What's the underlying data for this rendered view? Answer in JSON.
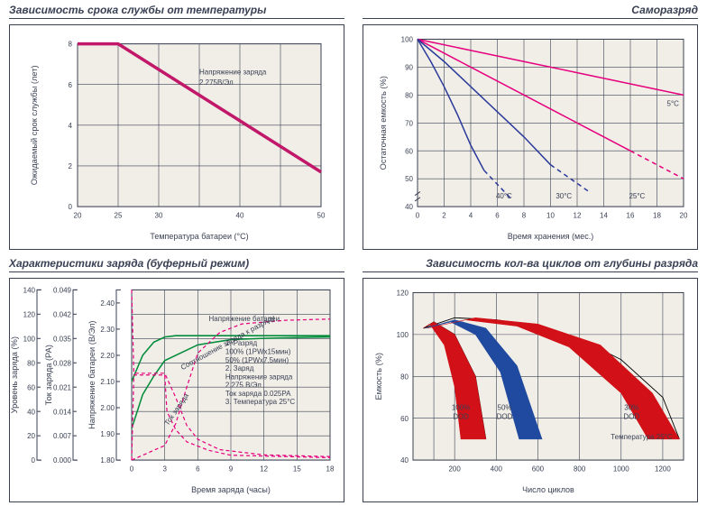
{
  "panels": {
    "lifeTemp": {
      "title": "Зависимость срока службы от температуры",
      "type": "line",
      "xlabel": "Температура батареи (°C)",
      "ylabel": "Ожидаемый срок службы (лет)",
      "xlim": [
        20,
        50
      ],
      "xtick_step": 5,
      "xtick_special": [
        20,
        25,
        30,
        40,
        50
      ],
      "ylim": [
        0,
        8
      ],
      "ytick_step": 2,
      "background_color": "#f1eee7",
      "grid_color": "#3a4154",
      "line_color": "#c1186a",
      "line_width": 3.5,
      "annotation": "Напряжение заряда\n2.275В/Эл",
      "data_x": [
        20,
        25,
        50
      ],
      "data_y": [
        8,
        8,
        1.7
      ]
    },
    "selfDischarge": {
      "title": "Саморазряд",
      "type": "line",
      "xlabel": "Время хранения (мес.)",
      "ylabel": "Остаточная емкость (%)",
      "xlim": [
        0,
        20
      ],
      "xtick_step": 2,
      "ylim": [
        40,
        100
      ],
      "ytick_step": 10,
      "background_color": "#f1eee7",
      "grid_color": "#3a4154",
      "series": [
        {
          "label": "5°C",
          "color": "#e6007e",
          "dash": "none",
          "x": [
            0,
            4,
            8,
            12,
            16,
            20
          ],
          "y": [
            100,
            96,
            92,
            88,
            84,
            80
          ]
        },
        {
          "label": "25°C",
          "color": "#e6007e",
          "dash": "none",
          "x": [
            0,
            4,
            8,
            12,
            16
          ],
          "y": [
            100,
            90,
            80,
            70,
            60
          ],
          "dash_tail_x": [
            16,
            20
          ],
          "dash_tail_y": [
            60,
            50
          ]
        },
        {
          "label": "30°C",
          "color": "#2a3a9a",
          "dash": "none",
          "x": [
            0,
            2,
            4,
            6,
            8,
            10
          ],
          "y": [
            100,
            92,
            83,
            74,
            65,
            55
          ],
          "dash_tail_x": [
            10,
            13
          ],
          "dash_tail_y": [
            55,
            45
          ]
        },
        {
          "label": "40°C",
          "color": "#2a3a9a",
          "dash": "none",
          "x": [
            0,
            1,
            2,
            3,
            4,
            5
          ],
          "y": [
            100,
            92,
            83,
            73,
            62,
            53
          ],
          "dash_tail_x": [
            5,
            7
          ],
          "dash_tail_y": [
            53,
            43
          ]
        }
      ]
    },
    "chargeChar": {
      "title": "Характеристики  заряда (буферный режим)",
      "type": "multi-axis-line",
      "xlabel": "Время заряда (часы)",
      "xlim": [
        0,
        18
      ],
      "xtick_step": 3,
      "background_color": "#f1eee7",
      "grid_color": "#3a4154",
      "axes": {
        "level": {
          "label": "Уровень заряда (%)",
          "lim": [
            0,
            140
          ],
          "tick_step": 20
        },
        "current": {
          "label": "Ток заряда (РА)",
          "lim": [
            0,
            0.049
          ],
          "ticks": [
            0,
            0.007,
            0.014,
            0.021,
            0.028,
            0.035,
            0.042,
            0.049
          ]
        },
        "voltage": {
          "label": "Напряжение батареи (В/Эл)",
          "lim": [
            1.8,
            2.45
          ],
          "ticks": [
            1.8,
            1.9,
            2.0,
            2.1,
            2.2,
            2.3,
            2.4
          ]
        }
      },
      "series": [
        {
          "name": "Напряжение батареи",
          "color": "#008c3a",
          "dash": "none",
          "width": 1.5,
          "axis": "voltage",
          "x": [
            0,
            1,
            2,
            3,
            4,
            6,
            8,
            10,
            14,
            18
          ],
          "y": [
            2.1,
            2.2,
            2.25,
            2.27,
            2.275,
            2.275,
            2.275,
            2.275,
            2.275,
            2.275
          ]
        },
        {
          "name": "",
          "color": "#008c3a",
          "dash": "none",
          "width": 1.5,
          "axis": "voltage",
          "x": [
            0,
            1,
            2,
            3,
            6,
            9,
            12,
            15,
            18
          ],
          "y": [
            1.92,
            2.05,
            2.12,
            2.18,
            2.24,
            2.26,
            2.265,
            2.268,
            2.27
          ]
        },
        {
          "name": "Соотношение заряда к разряду",
          "color": "#e6007e",
          "dash": "4,3",
          "width": 1.2,
          "axis": "level",
          "x": [
            0,
            3,
            4,
            5,
            6,
            8,
            10,
            14,
            18
          ],
          "y": [
            0,
            12,
            30,
            60,
            88,
            105,
            112,
            115,
            116
          ]
        },
        {
          "name": "",
          "color": "#e6007e",
          "dash": "4,3",
          "width": 1.2,
          "axis": "level",
          "x": [
            0,
            0.2,
            3,
            3.2,
            4,
            5,
            7,
            9,
            18
          ],
          "y": [
            0,
            70,
            70,
            40,
            25,
            15,
            8,
            4,
            2
          ]
        },
        {
          "name": "Ток заряда",
          "color": "#e6007e",
          "dash": "4,3",
          "width": 1.2,
          "axis": "current",
          "x": [
            0,
            0.2,
            3,
            4,
            5,
            6,
            8,
            12,
            18
          ],
          "y": [
            0.049,
            0.025,
            0.025,
            0.018,
            0.01,
            0.006,
            0.003,
            0.0015,
            0.001
          ]
        }
      ],
      "note_lines": [
        "1. Разряд",
        "     100% (1PWx15мин)",
        "       50% (1PWx7.5мин)",
        "2. Заряд",
        "     Напряжение заряда",
        "     2.275 В/Эл",
        "     Ток заряда 0.025РА",
        "3. Температура 25°C"
      ]
    },
    "cycles": {
      "title": "Зависимость кол-ва циклов от глубины разряда",
      "type": "area",
      "xlabel": "Число циклов",
      "ylabel": "Емкость (%)",
      "xlim": [
        0,
        1300
      ],
      "xticks": [
        200,
        400,
        600,
        800,
        1000,
        1200
      ],
      "ylim": [
        40,
        120
      ],
      "ytick_step": 20,
      "background_color": "#f1eee7",
      "grid_color": "#3a4154",
      "annotation": "Температура 25°C",
      "envelope_color": "#000000",
      "envelope_top": {
        "x": [
          50,
          200,
          400,
          600,
          800,
          1000,
          1200,
          1280
        ],
        "y": [
          103,
          108,
          107,
          104,
          98,
          88,
          70,
          50
        ]
      },
      "envelope_bot": {
        "x": [
          50,
          100,
          200,
          300,
          350
        ],
        "y": [
          103,
          106,
          100,
          80,
          50
        ]
      },
      "bands": [
        {
          "label": "100%\nDOD",
          "color": "#d11017",
          "top_x": [
            50,
            100,
            200,
            300,
            350
          ],
          "top_y": [
            103,
            106,
            100,
            80,
            50
          ],
          "bot_x": [
            50,
            80,
            150,
            200,
            230
          ],
          "bot_y": [
            103,
            105,
            95,
            75,
            50
          ]
        },
        {
          "label": "50%\nDOD",
          "color": "#1f4aa0",
          "top_x": [
            60,
            200,
            350,
            500,
            620
          ],
          "top_y": [
            103,
            107,
            103,
            85,
            50
          ],
          "bot_x": [
            60,
            180,
            300,
            420,
            510
          ],
          "bot_y": [
            103,
            106,
            100,
            82,
            50
          ]
        },
        {
          "label": "30%\nDOD",
          "color": "#d11017",
          "top_x": [
            70,
            300,
            600,
            900,
            1150,
            1280
          ],
          "top_y": [
            103,
            108,
            105,
            95,
            72,
            50
          ],
          "bot_x": [
            70,
            250,
            500,
            750,
            1000,
            1130
          ],
          "bot_y": [
            103,
            107,
            104,
            94,
            72,
            50
          ]
        }
      ]
    }
  }
}
